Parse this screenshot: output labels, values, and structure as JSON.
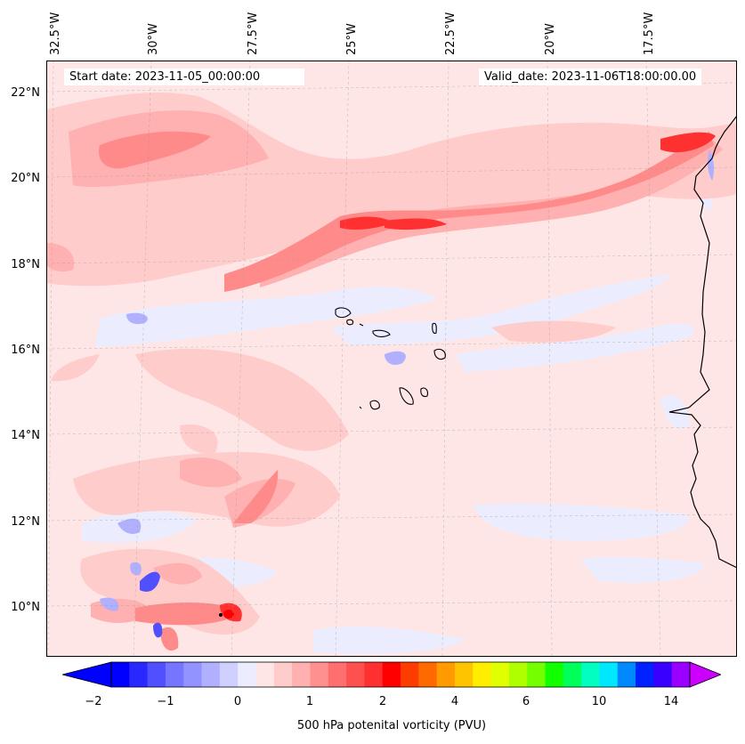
{
  "map": {
    "start_label": "Start date: 2023-11-05_00:00:00",
    "valid_label": "Valid_date: 2023-11-06T18:00:00.00",
    "lon_labels": [
      "32.5°W",
      "30°W",
      "27.5°W",
      "25°W",
      "22.5°W",
      "20°W",
      "17.5°W"
    ],
    "lat_labels": [
      "22°N",
      "20°N",
      "18°N",
      "16°N",
      "14°N",
      "12°N",
      "10°N"
    ],
    "region": {
      "lon_range": [
        -33,
        -15.7
      ],
      "lat_range": [
        8.9,
        22.8
      ]
    },
    "variable": "500 hPa potential vorticity",
    "colorbar": {
      "title": "500 hPa potenital vorticity (PVU)",
      "tick_labels": [
        "−2",
        "−1",
        "0",
        "1",
        "2",
        "4",
        "6",
        "10",
        "14"
      ],
      "extend": "both",
      "colors": [
        "#0000ff",
        "#2929ff",
        "#5050ff",
        "#7575ff",
        "#9393ff",
        "#b0b0ff",
        "#d0d0ff",
        "#ececff",
        "#ffe6e6",
        "#ffcccc",
        "#ffb0b0",
        "#ff9090",
        "#ff6f6f",
        "#ff5050",
        "#ff3030",
        "#ff0000",
        "#ff3c00",
        "#ff6a00",
        "#ff9a00",
        "#ffc400",
        "#ffee00",
        "#e0ff00",
        "#b0ff00",
        "#74ff00",
        "#12ff00",
        "#00ff5a",
        "#00ffc0",
        "#00e8ff",
        "#0088ff",
        "#0022ff",
        "#3a00ff",
        "#9900ff"
      ],
      "under_color": "#0000ff",
      "over_color": "#cc00ff"
    }
  }
}
